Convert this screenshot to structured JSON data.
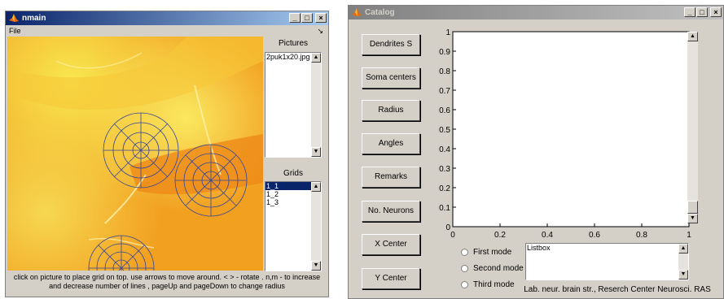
{
  "nmain": {
    "title": "nmain",
    "menu": {
      "file_label": "File",
      "arrow_glyph": "↘"
    },
    "pictures": {
      "label": "Pictures",
      "items": [
        "2puk1x20.jpg"
      ]
    },
    "grids": {
      "label": "Grids",
      "items": [
        "1_1",
        "1_2",
        "1_3"
      ],
      "selected_index": 0
    },
    "instructions": "click on picture to place grid on top. use arrows to move around. < > - rotate . n,m - to increase and decrease number of lines , pageUp and pageDown to change radius",
    "controls": {
      "minimize": "_",
      "maximize": "□",
      "close": "×"
    }
  },
  "catalog": {
    "title": "Catalog",
    "buttons": [
      "Dendrites S",
      "Soma centers",
      "Radius",
      "Angles",
      "Remarks",
      "No. Neurons",
      "X Center",
      "Y Center"
    ],
    "radios": [
      "First mode",
      "Second mode",
      "Third mode"
    ],
    "listbox": {
      "items": [
        "Listbox"
      ]
    },
    "credit": "Lab. neur. brain str., Reserch Center Neurosci. RAS",
    "controls": {
      "minimize": "_",
      "maximize": "□",
      "close": "×"
    }
  },
  "chart_data": {
    "type": "line",
    "x": [],
    "y": [],
    "xlim": [
      0,
      1
    ],
    "ylim": [
      0,
      1
    ],
    "xticks": [
      "0",
      "0.2",
      "0.4",
      "0.6",
      "0.8",
      "1"
    ],
    "yticks": [
      "0",
      "0.1",
      "0.2",
      "0.3",
      "0.4",
      "0.5",
      "0.6",
      "0.7",
      "0.8",
      "0.9",
      "1"
    ],
    "title": "",
    "xlabel": "",
    "ylabel": "",
    "grid": false
  },
  "colors": {
    "grid_stroke": "#34459a",
    "image_orange": "#f2a020",
    "image_yellow": "#f8e840"
  }
}
